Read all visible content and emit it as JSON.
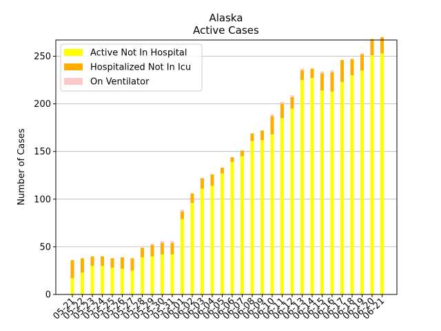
{
  "chart_data": {
    "type": "bar",
    "stacked": true,
    "title": "Alaska",
    "subtitle": "Active Cases",
    "xlabel": "",
    "ylabel": "Number of Cases",
    "ylim": [
      0,
      267
    ],
    "yticks": [
      0,
      50,
      100,
      150,
      200,
      250
    ],
    "grid": "horizontal",
    "legend_position": "top-left",
    "categories": [
      "05-21",
      "05-22",
      "05-23",
      "05-24",
      "05-25",
      "05-26",
      "05-27",
      "05-28",
      "05-29",
      "05-30",
      "05-31",
      "06-01",
      "06-02",
      "06-03",
      "06-04",
      "06-05",
      "06-06",
      "06-07",
      "06-08",
      "06-09",
      "06-10",
      "06-11",
      "06-12",
      "06-13",
      "06-14",
      "06-15",
      "06-16",
      "06-17",
      "06-18",
      "06-19",
      "06-20",
      "06-21"
    ],
    "series": [
      {
        "name": "Active Not In Hospital",
        "color": "#ffff00",
        "values": [
          17,
          23,
          30,
          30,
          28,
          27,
          25,
          39,
          40,
          42,
          42,
          79,
          96,
          111,
          114,
          127,
          139,
          145,
          161,
          162,
          168,
          185,
          195,
          225,
          227,
          214,
          213,
          223,
          230,
          235,
          251,
          253
        ]
      },
      {
        "name": "Hospitalized Not In Icu",
        "color": "#ffae00",
        "values": [
          19,
          15,
          10,
          10,
          10,
          12,
          13,
          10,
          12,
          12,
          12,
          8,
          10,
          11,
          12,
          6,
          5,
          6,
          8,
          10,
          19,
          15,
          12,
          10,
          10,
          18,
          20,
          23,
          17,
          17,
          17,
          17
        ]
      },
      {
        "name": "On Ventilator",
        "color": "#ffc8c8",
        "values": [
          0,
          0,
          0,
          0,
          0,
          0,
          0,
          0,
          1,
          2,
          2,
          2,
          0,
          0,
          0,
          0,
          0,
          0,
          0,
          0,
          2,
          2,
          2,
          2,
          0,
          2,
          2,
          0,
          0,
          1,
          0,
          0
        ]
      }
    ]
  }
}
